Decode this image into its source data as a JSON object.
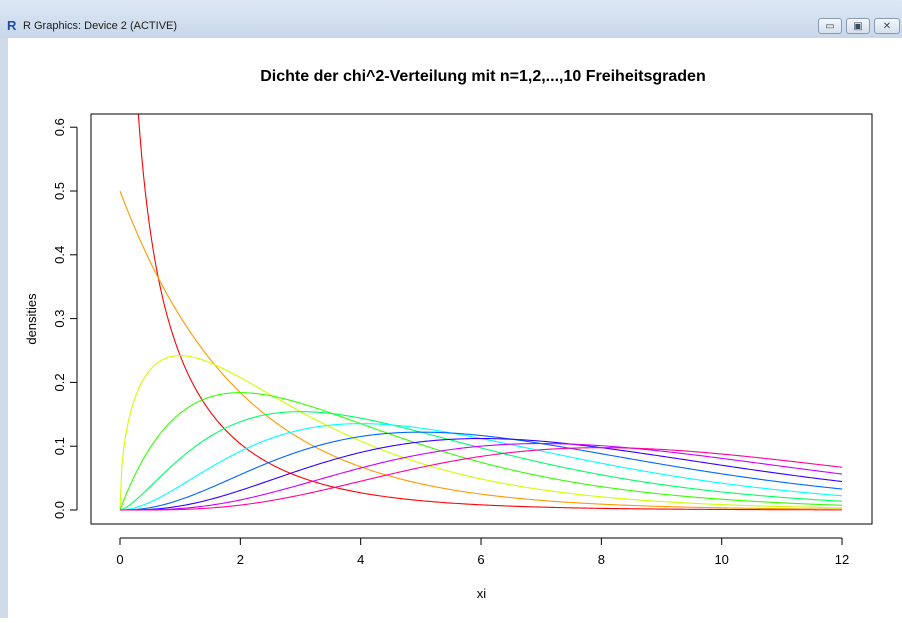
{
  "window": {
    "title": "R Graphics: Device 2 (ACTIVE)",
    "app_icon": "R",
    "controls": [
      "minimize-icon",
      "maximize-icon",
      "close-icon"
    ]
  },
  "chart_data": {
    "type": "line",
    "title": "Dichte der chi^2-Verteilung mit n=1,2,...,10 Freiheitsgraden",
    "xlabel": "xi",
    "ylabel": "densities",
    "xlim": [
      0,
      12
    ],
    "ylim": [
      0,
      0.6
    ],
    "x_ticks": [
      0,
      2,
      4,
      6,
      8,
      10,
      12
    ],
    "x_tick_labels": [
      "0",
      "2",
      "4",
      "6",
      "8",
      "10",
      "12"
    ],
    "y_ticks": [
      0.0,
      0.1,
      0.2,
      0.3,
      0.4,
      0.5,
      0.6
    ],
    "y_tick_labels": [
      "0.0",
      "0.1",
      "0.2",
      "0.3",
      "0.4",
      "0.5",
      "0.6"
    ],
    "grid": false,
    "legend": "none",
    "function": "chi-squared density",
    "series": [
      {
        "df": 1,
        "color": "#ff0000"
      },
      {
        "df": 2,
        "color": "#ff9900"
      },
      {
        "df": 3,
        "color": "#ccff00"
      },
      {
        "df": 4,
        "color": "#33ff00"
      },
      {
        "df": 5,
        "color": "#00ff66"
      },
      {
        "df": 6,
        "color": "#00ffff"
      },
      {
        "df": 7,
        "color": "#0066ff"
      },
      {
        "df": 8,
        "color": "#3300ff"
      },
      {
        "df": 9,
        "color": "#cc00ff"
      },
      {
        "df": 10,
        "color": "#ff0099"
      }
    ]
  }
}
